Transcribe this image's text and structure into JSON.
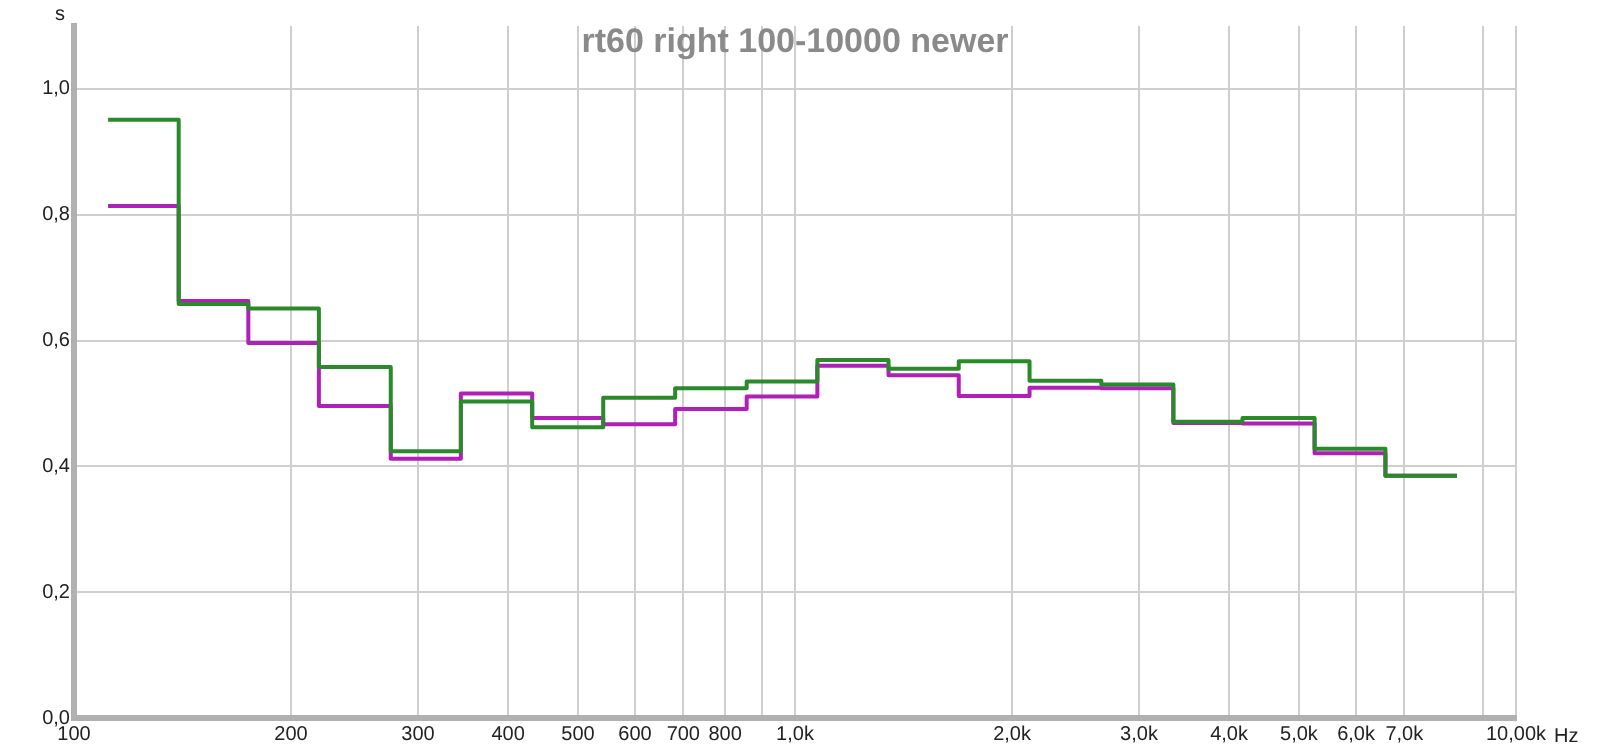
{
  "chart_data": {
    "type": "step",
    "title": "rt60 right 100-10000 newer",
    "xlabel": "Hz",
    "ylabel": "s",
    "x": [
      111.5,
      139.7,
      174.5,
      218.6,
      275,
      344,
      432,
      542,
      682,
      857,
      1074,
      1348,
      1687,
      2115,
      2660,
      3348,
      4175,
      5256,
      6590,
      8283
    ],
    "series": [
      {
        "color": "#2a8a2a",
        "values": [
          0.951,
          0.658,
          0.651,
          0.558,
          0.424,
          0.503,
          0.462,
          0.509,
          0.524,
          0.535,
          0.569,
          0.555,
          0.567,
          0.536,
          0.53,
          0.471,
          0.477,
          0.428,
          0.385,
          0.385
        ]
      },
      {
        "color": "#b020b8",
        "values": [
          0.814,
          0.663,
          0.596,
          0.496,
          0.412,
          0.516,
          0.477,
          0.467,
          0.491,
          0.511,
          0.56,
          0.545,
          0.512,
          0.525,
          0.524,
          0.469,
          0.468,
          0.421,
          0.385,
          0.385
        ]
      }
    ],
    "log": "x",
    "xlim": [
      100,
      10000
    ],
    "xticks": [
      100,
      200,
      300,
      400,
      500,
      600,
      700,
      800,
      {
        "value": 900,
        "label": null
      },
      {
        "value": 1000,
        "label": "1,0k"
      },
      {
        "value": 2000,
        "label": "2,0k"
      },
      {
        "value": 3000,
        "label": "3,0k"
      },
      {
        "value": 4000,
        "label": "4,0k"
      },
      {
        "value": 5000,
        "label": "5,0k"
      },
      {
        "value": 6000,
        "label": "6,0k"
      },
      {
        "value": 7000,
        "label": "7,0k"
      },
      {
        "value": 9000,
        "label": null
      },
      {
        "value": 10000,
        "label": "10,00k"
      }
    ],
    "ylim": [
      0,
      1.1
    ],
    "yticks": [
      {
        "value": 0,
        "label": "0,0"
      },
      {
        "value": 0.2,
        "label": "0,2"
      },
      {
        "value": 0.4,
        "label": "0,4"
      },
      {
        "value": 0.6,
        "label": "0,6"
      },
      {
        "value": 0.8,
        "label": "0,8"
      },
      {
        "value": 1,
        "label": "1,0"
      }
    ],
    "grid": true,
    "legend": false,
    "marker": "none",
    "line_style": "solid"
  }
}
